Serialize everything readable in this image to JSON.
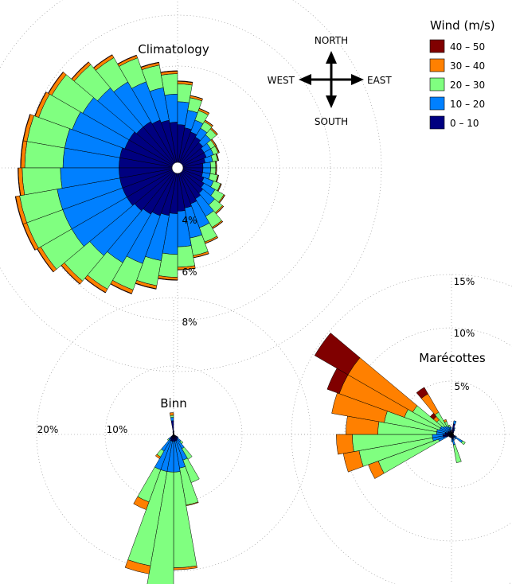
{
  "legend": {
    "title": "Wind (m/s)",
    "items": [
      {
        "label": "40 – 50",
        "color": "#800000"
      },
      {
        "label": "30 – 40",
        "color": "#ff8000"
      },
      {
        "label": "20 – 30",
        "color": "#80ff80"
      },
      {
        "label": "10 – 20",
        "color": "#0080ff"
      },
      {
        "label": "0 – 10",
        "color": "#000080"
      }
    ]
  },
  "compass": {
    "north": "NORTH",
    "south": "SOUTH",
    "east": "EAST",
    "west": "WEST"
  },
  "chart_data": [
    {
      "type": "windrose",
      "title": "Climatology",
      "bins": [
        "0 – 10",
        "10 – 20",
        "20 – 30",
        "30 – 40",
        "40 – 50"
      ],
      "ring_labels": [
        "4%",
        "6%",
        "8%"
      ],
      "ring_values": [
        2,
        4,
        6,
        8
      ],
      "directions_deg": [
        275,
        285,
        295,
        305,
        315,
        325,
        335,
        345,
        355,
        5,
        15,
        25,
        35,
        45,
        55,
        65,
        75,
        85,
        95,
        105,
        115,
        125,
        135,
        145,
        155,
        165,
        175,
        185,
        195,
        205,
        215,
        225,
        235,
        245,
        255,
        265
      ],
      "segments_pct": [
        [
          2.3,
          2.2,
          1.5,
          0.15,
          0.02
        ],
        [
          2.3,
          2.2,
          1.5,
          0.15,
          0.02
        ],
        [
          2.2,
          2.2,
          1.4,
          0.15,
          0.02
        ],
        [
          2.2,
          2.1,
          1.4,
          0.15,
          0.02
        ],
        [
          2.1,
          2.0,
          1.2,
          0.12,
          0.02
        ],
        [
          2.1,
          1.8,
          1.1,
          0.12,
          0.02
        ],
        [
          2.0,
          1.6,
          1.0,
          0.1,
          0.02
        ],
        [
          1.9,
          1.3,
          0.9,
          0.1,
          0.02
        ],
        [
          1.8,
          1.1,
          0.8,
          0.1,
          0.02
        ],
        [
          1.7,
          0.9,
          0.7,
          0.1,
          0.02
        ],
        [
          1.6,
          0.7,
          0.5,
          0.08,
          0.01
        ],
        [
          1.5,
          0.5,
          0.4,
          0.08,
          0.01
        ],
        [
          1.4,
          0.4,
          0.3,
          0.06,
          0.01
        ],
        [
          1.3,
          0.4,
          0.3,
          0.05,
          0.01
        ],
        [
          1.2,
          0.3,
          0.2,
          0.05,
          0.01
        ],
        [
          1.2,
          0.3,
          0.2,
          0.04,
          0.01
        ],
        [
          1.1,
          0.3,
          0.2,
          0.03,
          0.01
        ],
        [
          1.0,
          0.3,
          0.2,
          0.03,
          0.01
        ],
        [
          1.0,
          0.3,
          0.2,
          0.03,
          0.01
        ],
        [
          1.0,
          0.3,
          0.3,
          0.03,
          0.01
        ],
        [
          1.1,
          0.4,
          0.3,
          0.03,
          0.01
        ],
        [
          1.2,
          0.5,
          0.4,
          0.04,
          0.01
        ],
        [
          1.3,
          0.6,
          0.4,
          0.05,
          0.01
        ],
        [
          1.4,
          0.8,
          0.5,
          0.05,
          0.01
        ],
        [
          1.5,
          1.0,
          0.6,
          0.06,
          0.01
        ],
        [
          1.6,
          1.2,
          0.7,
          0.08,
          0.01
        ],
        [
          1.7,
          1.4,
          0.8,
          0.1,
          0.01
        ],
        [
          1.8,
          1.6,
          0.9,
          0.1,
          0.02
        ],
        [
          1.9,
          1.8,
          1.0,
          0.12,
          0.02
        ],
        [
          2.0,
          2.0,
          1.1,
          0.15,
          0.02
        ],
        [
          2.1,
          2.2,
          1.2,
          0.15,
          0.02
        ],
        [
          2.2,
          2.3,
          1.3,
          0.15,
          0.02
        ],
        [
          2.3,
          2.5,
          1.4,
          0.15,
          0.02
        ],
        [
          2.3,
          2.5,
          1.5,
          0.15,
          0.02
        ],
        [
          2.3,
          2.5,
          1.5,
          0.15,
          0.02
        ],
        [
          2.3,
          2.3,
          1.5,
          0.15,
          0.02
        ]
      ]
    },
    {
      "type": "windrose",
      "title": "Binn",
      "bins": [
        "0 – 10",
        "10 – 20",
        "20 – 30",
        "30 – 40",
        "40 – 50"
      ],
      "ring_labels": [
        "10%",
        "20%"
      ],
      "ring_values": [
        10,
        20
      ],
      "directions_deg": [
        5,
        15,
        25,
        35,
        45,
        55,
        65,
        75,
        85,
        95,
        105,
        115,
        125,
        135,
        145,
        155,
        165,
        175,
        185,
        195,
        205,
        215,
        225,
        235,
        245,
        255,
        265,
        275,
        285,
        295,
        305,
        315,
        325,
        335,
        345,
        355
      ],
      "segments_pct": [
        [
          0.3,
          0.2,
          0,
          0,
          0
        ],
        [
          0.2,
          0,
          0,
          0,
          0
        ],
        [
          0.1,
          0,
          0,
          0,
          0
        ],
        [
          0.1,
          0,
          0,
          0,
          0
        ],
        [
          0.1,
          0,
          0,
          0,
          0
        ],
        [
          0.1,
          0,
          0,
          0,
          0
        ],
        [
          0.1,
          0,
          0,
          0,
          0
        ],
        [
          0.1,
          0,
          0,
          0,
          0
        ],
        [
          0.1,
          0,
          0,
          0,
          0
        ],
        [
          0.1,
          0,
          0,
          0,
          0
        ],
        [
          0.1,
          0,
          0,
          0,
          0
        ],
        [
          0.1,
          0,
          0,
          0,
          0
        ],
        [
          0.6,
          0.2,
          0,
          0,
          0
        ],
        [
          0.8,
          0.6,
          0.4,
          0,
          0
        ],
        [
          0.9,
          1.5,
          1.8,
          0,
          0
        ],
        [
          1.0,
          3.0,
          3.5,
          0,
          0
        ],
        [
          1.0,
          4.0,
          5.5,
          0.1,
          0
        ],
        [
          1.0,
          4.5,
          14.0,
          0.3,
          0
        ],
        [
          1.0,
          4.5,
          17.0,
          1.0,
          0
        ],
        [
          1.0,
          4.5,
          14.0,
          1.2,
          0
        ],
        [
          1.0,
          4.5,
          5.0,
          1.2,
          0
        ],
        [
          0.8,
          2.0,
          1.0,
          0.3,
          0
        ],
        [
          0.5,
          0.5,
          0.2,
          0,
          0
        ],
        [
          0.2,
          0,
          0,
          0,
          0
        ],
        [
          0.1,
          0,
          0,
          0,
          0
        ],
        [
          0.1,
          0,
          0,
          0,
          0
        ],
        [
          0.1,
          0,
          0,
          0,
          0
        ],
        [
          0.1,
          0,
          0,
          0,
          0
        ],
        [
          0.1,
          0,
          0,
          0,
          0
        ],
        [
          0.1,
          0,
          0,
          0,
          0
        ],
        [
          0.1,
          0,
          0,
          0,
          0
        ],
        [
          0.1,
          0,
          0,
          0,
          0
        ],
        [
          0.1,
          0,
          0,
          0,
          0
        ],
        [
          0.2,
          0,
          0,
          0,
          0
        ],
        [
          0.3,
          0.1,
          0,
          0,
          0
        ],
        [
          2.0,
          0.5,
          0.3,
          0.4,
          0
        ]
      ]
    },
    {
      "type": "windrose",
      "title": "Marécottes",
      "bins": [
        "0 – 10",
        "10 – 20",
        "20 – 30",
        "30 – 40",
        "40 – 50"
      ],
      "ring_labels": [
        "5%",
        "10%",
        "15%"
      ],
      "ring_values": [
        5,
        10,
        15
      ],
      "directions_deg": [
        5,
        15,
        25,
        35,
        45,
        55,
        65,
        75,
        85,
        95,
        105,
        115,
        125,
        135,
        145,
        155,
        165,
        175,
        185,
        195,
        205,
        215,
        225,
        235,
        245,
        255,
        265,
        275,
        285,
        295,
        305,
        315,
        325,
        335,
        345,
        355
      ],
      "segments_pct": [
        [
          0.2,
          0,
          0,
          0,
          0
        ],
        [
          1.0,
          0.3,
          0,
          0,
          0
        ],
        [
          0.6,
          0.1,
          0,
          0,
          0
        ],
        [
          0.4,
          0.1,
          0,
          0,
          0
        ],
        [
          0.3,
          0,
          0,
          0,
          0
        ],
        [
          0.2,
          0,
          0,
          0,
          0
        ],
        [
          0.2,
          0,
          0,
          0,
          0
        ],
        [
          0.2,
          0,
          0,
          0,
          0
        ],
        [
          0.2,
          0,
          0,
          0,
          0
        ],
        [
          0.2,
          0,
          0,
          0,
          0
        ],
        [
          0.2,
          0,
          0,
          0,
          0
        ],
        [
          0.3,
          0.2,
          0,
          0,
          0
        ],
        [
          0.4,
          0.8,
          0.3,
          0,
          0
        ],
        [
          0.4,
          0.2,
          0,
          0,
          0
        ],
        [
          0.3,
          0.1,
          0,
          0,
          0
        ],
        [
          0.4,
          0.2,
          0,
          0,
          0
        ],
        [
          0.5,
          0.5,
          1.7,
          0,
          0
        ],
        [
          0.4,
          0.3,
          0,
          0,
          0
        ],
        [
          0.3,
          0,
          0,
          0,
          0
        ],
        [
          0.3,
          0,
          0,
          0,
          0
        ],
        [
          0.3,
          0,
          0,
          0,
          0
        ],
        [
          0.3,
          0,
          0,
          0,
          0
        ],
        [
          0.3,
          0,
          0,
          0,
          0
        ],
        [
          0.3,
          0,
          0,
          0,
          0
        ],
        [
          0.5,
          0.8,
          6.0,
          1.0,
          0
        ],
        [
          0.8,
          1.0,
          7.0,
          1.5,
          0
        ],
        [
          0.8,
          1.0,
          7.5,
          1.5,
          0
        ],
        [
          0.6,
          0.8,
          5.5,
          3.0,
          0
        ],
        [
          0.6,
          0.8,
          5.0,
          5.0,
          0
        ],
        [
          0.4,
          0.8,
          3.5,
          6.5,
          1.2
        ],
        [
          0.4,
          0.8,
          3.0,
          7.0,
          3.6
        ],
        [
          0.4,
          0.6,
          0.8,
          0.4,
          0.4
        ],
        [
          0.3,
          0.6,
          1.5,
          2.0,
          0.7
        ],
        [
          0.3,
          0.5,
          0.5,
          0.2,
          0
        ],
        [
          0.3,
          0.4,
          0.2,
          0,
          0
        ],
        [
          0.4,
          0.3,
          0,
          0,
          0
        ]
      ]
    }
  ]
}
